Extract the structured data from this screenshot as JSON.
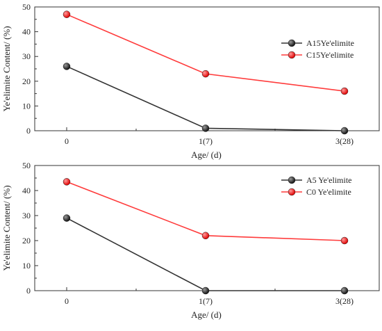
{
  "chart_data": [
    {
      "type": "line",
      "categories": [
        "0",
        "1(7)",
        "3(28)"
      ],
      "series": [
        {
          "name": "A15Ye'elimite",
          "values": [
            26,
            1,
            0
          ],
          "color": "#333333"
        },
        {
          "name": "C15Ye'elimite",
          "values": [
            47,
            23,
            16
          ],
          "color": "#ff3b3b"
        }
      ],
      "xlabel": "Age/ (d)",
      "ylabel": "Ye'elimite Content/ (%)",
      "ylim": [
        0,
        50
      ],
      "yticks": [
        0,
        10,
        20,
        30,
        40,
        50
      ],
      "legend": "right"
    },
    {
      "type": "line",
      "categories": [
        "0",
        "1(7)",
        "3(28)"
      ],
      "series": [
        {
          "name": "A5 Ye'elimite",
          "values": [
            29,
            0,
            0
          ],
          "color": "#333333"
        },
        {
          "name": "C0 Ye'elimite",
          "values": [
            43.5,
            22,
            20
          ],
          "color": "#ff3b3b"
        }
      ],
      "xlabel": "Age/ (d)",
      "ylabel": "Ye'elimite Content/ (%)",
      "ylim": [
        0,
        50
      ],
      "yticks": [
        0,
        10,
        20,
        30,
        40,
        50
      ],
      "legend": "top-right"
    }
  ]
}
